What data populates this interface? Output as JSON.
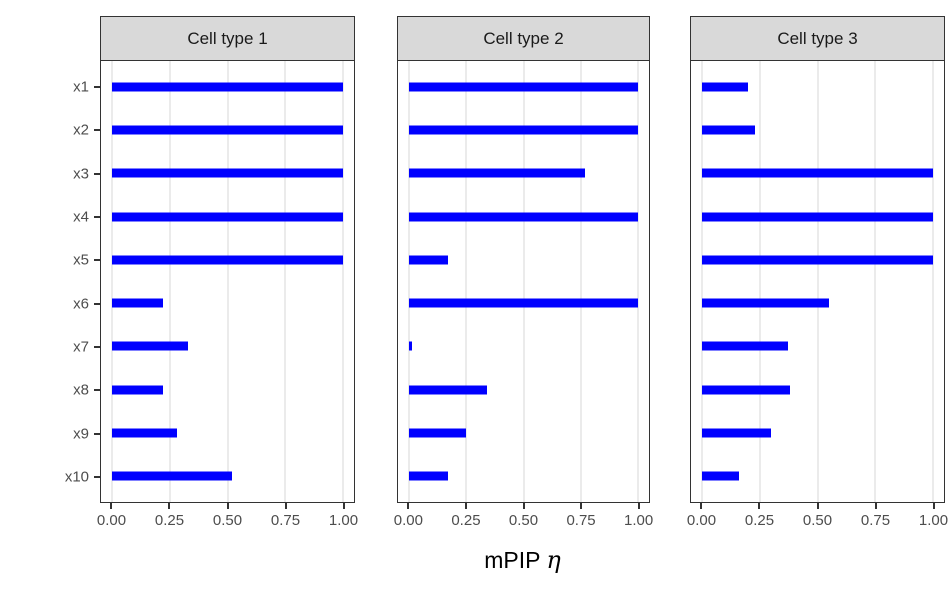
{
  "chart_data": {
    "type": "bar",
    "orientation": "horizontal",
    "title": "",
    "xlabel": "mPIP η",
    "xlabel_main": "mPIP",
    "xlabel_symbol": "η",
    "ylabel": "",
    "xlim": [
      0,
      1
    ],
    "x_ticks": [
      0,
      0.25,
      0.5,
      0.75,
      1
    ],
    "x_tick_labels": [
      "0.00",
      "0.25",
      "0.50",
      "0.75",
      "1.00"
    ],
    "categories": [
      "x1",
      "x2",
      "x3",
      "x4",
      "x5",
      "x6",
      "x7",
      "x8",
      "x9",
      "x10"
    ],
    "facets": [
      {
        "label": "Cell type 1",
        "values": [
          1.0,
          1.0,
          1.0,
          1.0,
          1.0,
          0.22,
          0.33,
          0.22,
          0.28,
          0.52
        ]
      },
      {
        "label": "Cell type 2",
        "values": [
          1.0,
          1.0,
          0.77,
          1.0,
          0.17,
          1.0,
          0.01,
          0.34,
          0.25,
          0.17
        ]
      },
      {
        "label": "Cell type 3",
        "values": [
          0.2,
          0.23,
          1.0,
          1.0,
          1.0,
          0.55,
          0.37,
          0.38,
          0.3,
          0.16
        ]
      }
    ],
    "grid": true,
    "legend": false,
    "colors": {
      "bar": "#0000FF",
      "strip_background": "#D9D9D9",
      "panel_border": "#333333",
      "gridline": "#EBEBEB",
      "tick_label": "#4D4D4D",
      "axis_title": "#000000"
    }
  }
}
